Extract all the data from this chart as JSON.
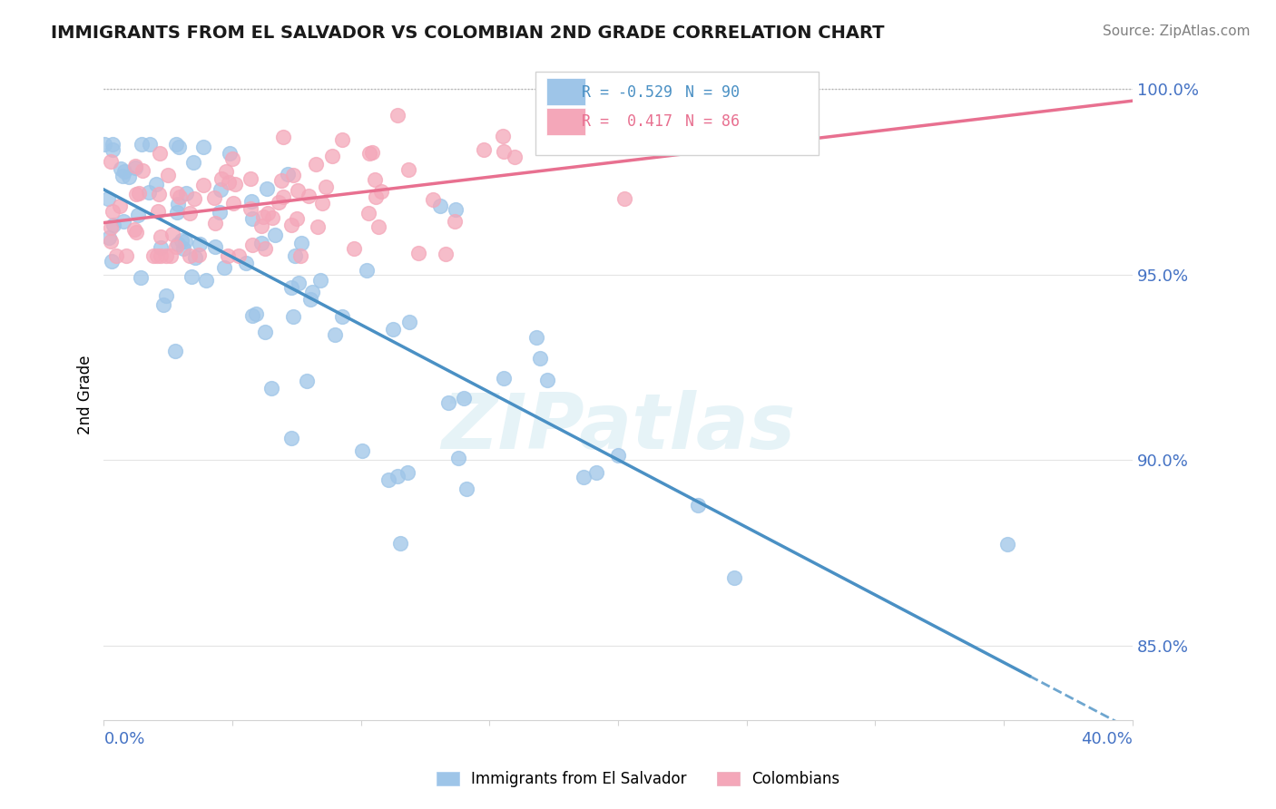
{
  "title": "IMMIGRANTS FROM EL SALVADOR VS COLOMBIAN 2ND GRADE CORRELATION CHART",
  "source": "Source: ZipAtlas.com",
  "ylabel": "2nd Grade",
  "legend_blue_label": "Immigrants from El Salvador",
  "legend_pink_label": "Colombians",
  "blue_color": "#9ec5e8",
  "pink_color": "#f4a7b9",
  "blue_line_color": "#4a90c4",
  "pink_line_color": "#e87090",
  "axis_color": "#4472c4",
  "watermark": "ZIPatlas",
  "xlim": [
    0.0,
    0.4
  ],
  "ylim": [
    0.83,
    1.005
  ],
  "n_blue": 90,
  "n_pink": 86,
  "blue_r": "-0.529",
  "pink_r": "0.417",
  "blue_seed": 10,
  "pink_seed": 20
}
